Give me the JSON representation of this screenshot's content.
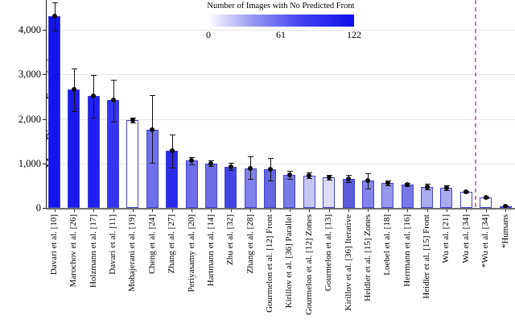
{
  "figure": {
    "y_axis_label": "Mean Distance Error (m)"
  },
  "colorbar": {
    "title": "Number of Images with No Predicted Front",
    "ticks": [
      "0",
      "61",
      "122"
    ],
    "range": [
      0,
      122
    ],
    "min_color": "#FFFFFF",
    "max_color": "#0F0FEE"
  },
  "chart_data": {
    "type": "bar",
    "title": "",
    "xlabel": "",
    "ylabel": "Mean Distance Error (m)",
    "ylim": [
      0,
      4670
    ],
    "grid": "horizontal",
    "legend_position": "top-center-colorbar",
    "y_ticks": [
      0,
      1000,
      2000,
      3000,
      4000
    ],
    "y_tick_labels": [
      "0",
      "1,000",
      "2,000",
      "3,000",
      "4,000"
    ],
    "categories": [
      "Davari et al. [10]",
      "Marochov et al. [26]",
      "Holzmann et al. [17]",
      "Davari et al. [11]",
      "Mohajerani et al. [19]",
      "Cheng et al. [24]",
      "Zhang et al. [27]",
      "Periyasamy et al. [20]",
      "Hartmann et al. [14]",
      "Zhu et al. [32]",
      "Zhang et al. [28]",
      "Gourmelon et al. [12] Front",
      "Kirillov et al. [36] Parallel",
      "Gourmelon et al. [12] Zones",
      "Gourmelon et al. [13]",
      "Kirillov et al. [36] Iterative",
      "Heidler et al. [15] Zones",
      "Loebel et al. [18]",
      "Herrmann et al. [16]",
      "Heidler et al. [15] Front",
      "Wu et al. [21]",
      "Wu et al. [34]",
      "*Wu et al. [34]",
      "*Humans"
    ],
    "values": [
      4310,
      2660,
      2510,
      2420,
      1980,
      1760,
      1290,
      1060,
      1000,
      930,
      895,
      870,
      740,
      730,
      690,
      660,
      615,
      560,
      520,
      475,
      450,
      360,
      230,
      38
    ],
    "error_low": [
      3990,
      2180,
      2030,
      1930,
      1925,
      1010,
      910,
      975,
      935,
      855,
      650,
      620,
      650,
      670,
      635,
      585,
      435,
      510,
      480,
      415,
      395,
      335,
      215,
      30
    ],
    "error_high": [
      4620,
      3140,
      2990,
      2880,
      2035,
      2530,
      1650,
      1145,
      1070,
      1005,
      1150,
      1130,
      835,
      795,
      750,
      740,
      780,
      615,
      560,
      535,
      505,
      385,
      250,
      50
    ],
    "bar_fill_colors": [
      "#1414EF",
      "#1A1AEF",
      "#2020F0",
      "#3535F1",
      "#FFFFFF",
      "#6F6FF0",
      "#2B2BEE",
      "#6E6EE8",
      "#6E6EE8",
      "#4444E4",
      "#8080EA",
      "#6666E2",
      "#7B7BE5",
      "#C7C7F4",
      "#DCDCF8",
      "#5B5BDD",
      "#8484EA",
      "#9898EC",
      "#7878E7",
      "#AAAAF0",
      "#AAAAEF",
      "#FFFFFF",
      "#FFFFFF",
      "#7777E8"
    ],
    "dashed_separator_after_index": 21,
    "dashed_separator_color": "#C477C4",
    "bar_edge_color": "#4444CF",
    "error_bar_color": "#141414",
    "mean_marker": "black-dot"
  }
}
